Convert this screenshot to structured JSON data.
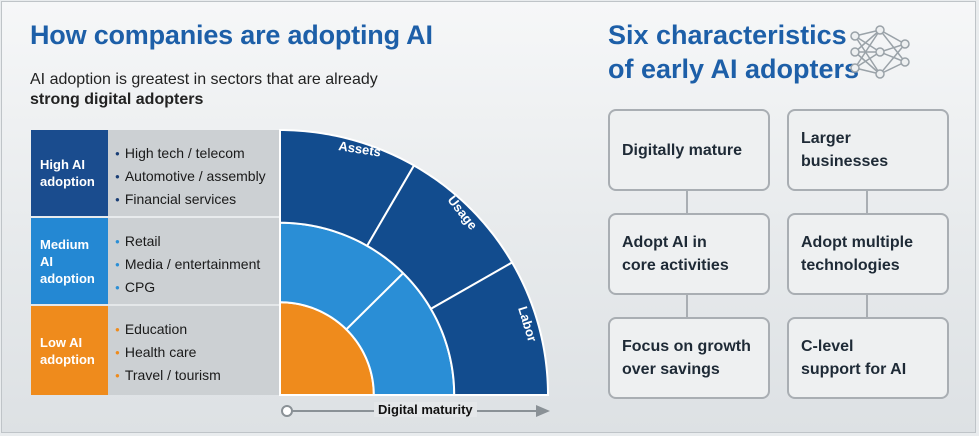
{
  "left": {
    "title": "How companies are adopting AI",
    "subtitle": "AI adoption is greatest in sectors that are already",
    "subtitle_bold": "strong digital adopters"
  },
  "levels": [
    {
      "label": "High AI adoption",
      "color": "#1a4c8e",
      "sectors": [
        "High tech / telecom",
        "Automotive / assembly",
        "Financial services"
      ]
    },
    {
      "label": "Medium AI adoption",
      "color": "#2488d3",
      "sectors": [
        "Retail",
        "Media / entertainment",
        "CPG"
      ]
    },
    {
      "label": "Low AI adoption",
      "color": "#ef8b1c",
      "sectors": [
        "Education",
        "Health care",
        "Travel / tourism"
      ]
    }
  ],
  "arc": {
    "labels": [
      "Assets",
      "Usage",
      "Labor"
    ],
    "colors": {
      "outer": "#124c8e",
      "mid": "#2a8ed6",
      "inner": "#ef8b1c",
      "stroke": "#ffffff"
    }
  },
  "axis": {
    "label": "Digital maturity"
  },
  "right": {
    "title_line1": "Six characteristics",
    "title_line2": "of early AI adopters",
    "characteristics": [
      [
        "Digitally mature",
        ""
      ],
      [
        "Larger",
        "businesses"
      ],
      [
        "Adopt AI in",
        "core activities"
      ],
      [
        "Adopt multiple",
        "technologies"
      ],
      [
        "Focus on growth",
        "over savings"
      ],
      [
        "C-level",
        "support for AI"
      ]
    ]
  }
}
